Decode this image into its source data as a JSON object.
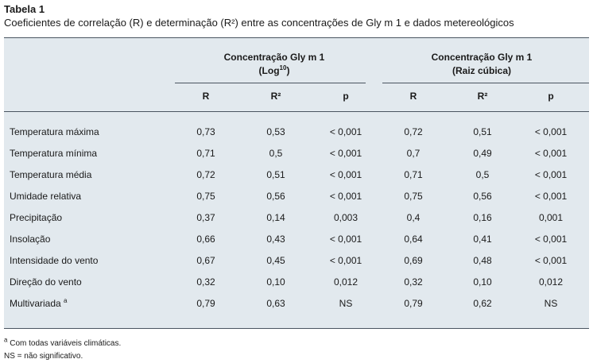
{
  "table": {
    "title": "Tabela 1",
    "caption": "Coeficientes de correlação (R) e determinação (R²) entre as concentrações de Gly m 1 e dados metereológicos",
    "groups": [
      {
        "line1": "Concentração Gly m 1",
        "line2_pre": "(Log",
        "line2_sup": "10",
        "line2_post": ")"
      },
      {
        "line1": "Concentração Gly m 1",
        "line2_pre": "(Raiz cúbica)",
        "line2_sup": "",
        "line2_post": ""
      }
    ],
    "columns": [
      "R",
      "R²",
      "p",
      "R",
      "R²",
      "p"
    ],
    "rows": [
      {
        "label": "Temperatura máxima",
        "label_sup": "",
        "values": [
          "0,73",
          "0,53",
          "< 0,001",
          "0,72",
          "0,51",
          "< 0,001"
        ]
      },
      {
        "label": "Temperatura mínima",
        "label_sup": "",
        "values": [
          "0,71",
          "0,5",
          "< 0,001",
          "0,7",
          "0,49",
          "< 0,001"
        ]
      },
      {
        "label": "Temperatura média",
        "label_sup": "",
        "values": [
          "0,72",
          "0,51",
          "< 0,001",
          "0,71",
          "0,5",
          "< 0,001"
        ]
      },
      {
        "label": "Umidade relativa",
        "label_sup": "",
        "values": [
          "0,75",
          "0,56",
          "< 0,001",
          "0,75",
          "0,56",
          "< 0,001"
        ]
      },
      {
        "label": "Precipitação",
        "label_sup": "",
        "values": [
          "0,37",
          "0,14",
          "0,003",
          "0,4",
          "0,16",
          "0,001"
        ]
      },
      {
        "label": "Insolação",
        "label_sup": "",
        "values": [
          "0,66",
          "0,43",
          "< 0,001",
          "0,64",
          "0,41",
          "< 0,001"
        ]
      },
      {
        "label": "Intensidade do vento",
        "label_sup": "",
        "values": [
          "0,67",
          "0,45",
          "< 0,001",
          "0,69",
          "0,48",
          "< 0,001"
        ]
      },
      {
        "label": "Direção do vento",
        "label_sup": "",
        "values": [
          "0,32",
          "0,10",
          "0,012",
          "0,32",
          "0,10",
          "0,012"
        ]
      },
      {
        "label": "Multivariada",
        "label_sup": "a",
        "values": [
          "0,79",
          "0,63",
          "NS",
          "0,79",
          "0,62",
          "NS"
        ]
      }
    ],
    "footnotes": {
      "a_marker": "a",
      "a_text": " Com todas variáveis climáticas.",
      "ns": "NS = não significativo."
    }
  }
}
